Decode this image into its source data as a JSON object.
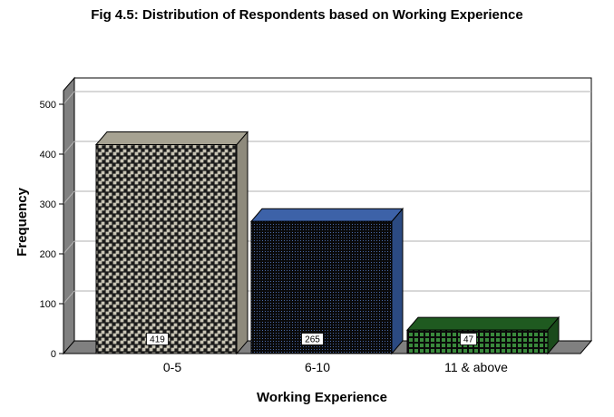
{
  "chart_data": {
    "type": "bar",
    "title": "Fig 4.5: Distribution of Respondents based on Working Experience",
    "xlabel": "Working Experience",
    "ylabel": "Frequency",
    "categories": [
      "0-5",
      "6-10",
      "11 & above"
    ],
    "values": [
      419,
      265,
      47
    ],
    "ylim": [
      0,
      550
    ],
    "yticks": [
      0,
      100,
      200,
      300,
      400,
      500
    ],
    "grid": true,
    "colors": {
      "bar_0_face": "#b0ac9c",
      "bar_0_top": "#a6a292",
      "bar_0_side": "#8e8a7c",
      "bar_1_face": "#3a5fa0",
      "bar_1_top": "#3d62a8",
      "bar_1_side": "#2b4a82",
      "bar_2_face": "#2e7a30",
      "bar_2_top": "#1f5a20",
      "bar_2_side": "#1a4a1b",
      "floor": "#808080",
      "left_wall": "#808080"
    }
  }
}
